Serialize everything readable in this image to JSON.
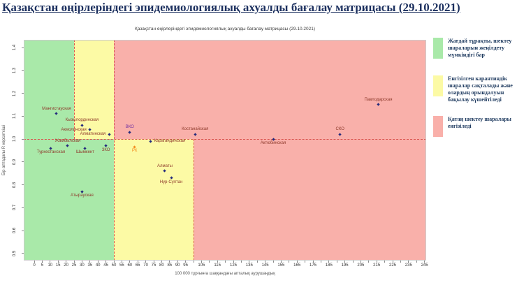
{
  "page_title": "Қазақстан өңірлеріндегі эпидемиологиялық ахуалды бағалау матрицасы  (29.10.2021)",
  "chart_data": {
    "type": "scatter",
    "title": "Қазақстан өңірлеріндегі эпидемиологиялық ахуалды бағалау матрицасы (29.10.2021)",
    "xlabel": "100 000 тұрғынға шаққандағы апталық аурушаңдық",
    "ylabel": "Бір аптадағы R көрсеткіші",
    "xlim": [
      -6.5,
      246.5
    ],
    "ylim": [
      0.47,
      1.43
    ],
    "x_major_ticks": [
      0,
      5,
      10,
      15,
      20,
      25,
      30,
      35,
      40,
      45,
      50,
      55,
      60,
      65,
      70,
      75,
      80,
      85,
      90,
      95,
      105,
      115,
      125,
      135,
      145,
      155,
      165,
      175,
      185,
      195,
      205,
      215,
      225,
      235,
      245
    ],
    "x_minor_ticks": {
      "start": 0,
      "end": 245,
      "step": 5
    },
    "y_ticks": [
      0.5,
      0.6,
      0.7,
      0.8,
      0.9,
      1.0,
      1.1,
      1.2,
      1.3,
      1.4
    ],
    "threshold_line_y": 1.0,
    "grid": false,
    "legend_position": "right",
    "boundary_color": "#d9534f",
    "zones": {
      "upper": [
        {
          "name": "green",
          "to": 25,
          "color": "#a9e9a9"
        },
        {
          "name": "yellow",
          "from": 25,
          "to": 50,
          "color": "#fcfaa5"
        },
        {
          "name": "red",
          "from": 50,
          "color": "#f9b0aa"
        }
      ],
      "lower": [
        {
          "name": "green",
          "to": 50,
          "color": "#a9e9a9"
        },
        {
          "name": "yellow",
          "from": 50,
          "to": 100,
          "color": "#fcfaa5"
        },
        {
          "name": "red",
          "from": 100,
          "color": "#f9b0aa"
        }
      ]
    },
    "dashed_boundaries": [
      {
        "x": 25,
        "span": "upper"
      },
      {
        "x": 50,
        "span": "full"
      },
      {
        "x": 100,
        "span": "lower"
      }
    ],
    "default_label_color": "#8f3b2d",
    "default_marker_color": "#232a7c",
    "points": [
      {
        "name": "Мангистауская",
        "x": 14,
        "y": 1.11,
        "label_pos": "above"
      },
      {
        "name": "Кызылординская",
        "x": 30,
        "y": 1.06,
        "label_pos": "above"
      },
      {
        "name": "Акмолинская",
        "x": 35,
        "y": 1.04,
        "label_pos": "left"
      },
      {
        "name": "Алматинская",
        "x": 47,
        "y": 1.02,
        "label_pos": "left"
      },
      {
        "name": "ВКО",
        "x": 60,
        "y": 1.03,
        "label_pos": "above",
        "label_color": "#7030a0"
      },
      {
        "name": "Костанайская",
        "x": 101,
        "y": 1.02,
        "label_pos": "above"
      },
      {
        "name": "Актюбинская",
        "x": 150,
        "y": 1.0,
        "label_pos": "below"
      },
      {
        "name": "СКО",
        "x": 192,
        "y": 1.02,
        "label_pos": "above"
      },
      {
        "name": "Павлодарская",
        "x": 216,
        "y": 1.15,
        "label_pos": "above"
      },
      {
        "name": "Жамбылская",
        "x": 21,
        "y": 0.97,
        "label_pos": "above"
      },
      {
        "name": "Туркестанская",
        "x": 10.5,
        "y": 0.96,
        "label_pos": "below"
      },
      {
        "name": "Шымкент",
        "x": 32,
        "y": 0.96,
        "label_pos": "below"
      },
      {
        "name": "ЗКО",
        "x": 45,
        "y": 0.97,
        "label_pos": "below"
      },
      {
        "name": "РК",
        "x": 63,
        "y": 0.965,
        "label_pos": "below",
        "label_color": "#f28c1e",
        "marker_color": "#f28c1e"
      },
      {
        "name": "Карагандинская",
        "x": 73,
        "y": 0.99,
        "label_pos": "right"
      },
      {
        "name": "Алматы",
        "x": 82,
        "y": 0.86,
        "label_pos": "above"
      },
      {
        "name": "Нур-Султан",
        "x": 86,
        "y": 0.83,
        "label_pos": "below"
      },
      {
        "name": "Атырауская",
        "x": 30,
        "y": 0.77,
        "label_pos": "below"
      }
    ]
  },
  "legend": {
    "items": [
      {
        "color": "#a9e9a9",
        "text": "Жағдай тұрақты, шектеу шараларын жеңілдету мүмкіндігі бар"
      },
      {
        "color": "#fcfaa5",
        "text": "Енгізілген карантиндік шаралар сақталады және олардың орындалуын бақылау күшейтіледі"
      },
      {
        "color": "#f9b0aa",
        "text": "Қатаң шектеу шаралары енгізіледі"
      }
    ]
  }
}
